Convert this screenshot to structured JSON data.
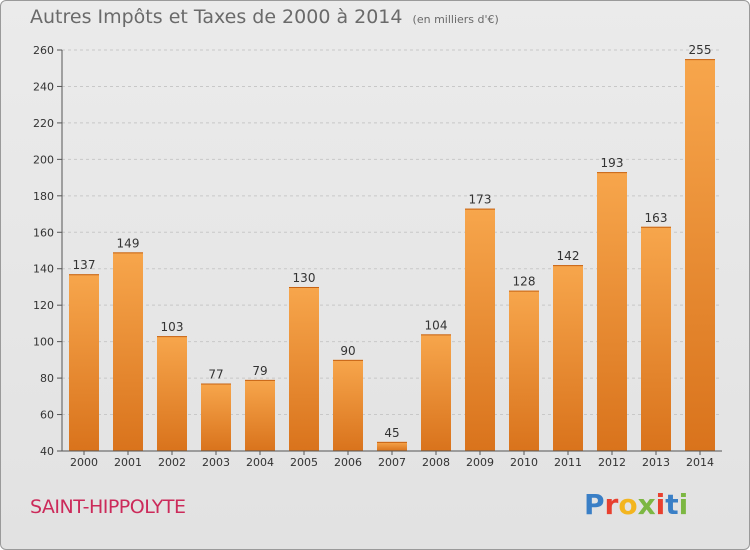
{
  "header": {
    "title": "Autres Impôts et Taxes de 2000 à 2014",
    "unit": "(en milliers d'€)"
  },
  "footer": {
    "city": "SAINT-HIPPOLYTE",
    "logo": "Proxiti",
    "logo_colors": [
      "#3a7fc6",
      "#e8402f",
      "#f3b51f",
      "#7cb742",
      "#e8402f",
      "#3a7fc6",
      "#7cb742"
    ]
  },
  "colors": {
    "bar_light": "#f7a64c",
    "bar_dark": "#d9731c",
    "grid": "#c8c8c8",
    "axis": "#555555",
    "text": "#333333"
  },
  "chart_data": {
    "type": "bar",
    "title": "Autres Impôts et Taxes de 2000 à 2014",
    "subtitle": "(en milliers d'€)",
    "categories": [
      "2000",
      "2001",
      "2002",
      "2003",
      "2004",
      "2005",
      "2006",
      "2007",
      "2008",
      "2009",
      "2010",
      "2011",
      "2012",
      "2013",
      "2014"
    ],
    "values": [
      137,
      149,
      103,
      77,
      79,
      130,
      90,
      45,
      104,
      173,
      128,
      142,
      193,
      163,
      255
    ],
    "ylim": [
      40,
      260
    ],
    "yticks": [
      40,
      60,
      80,
      100,
      120,
      140,
      160,
      180,
      200,
      220,
      240,
      260
    ],
    "grid": true,
    "data_labels": true
  }
}
